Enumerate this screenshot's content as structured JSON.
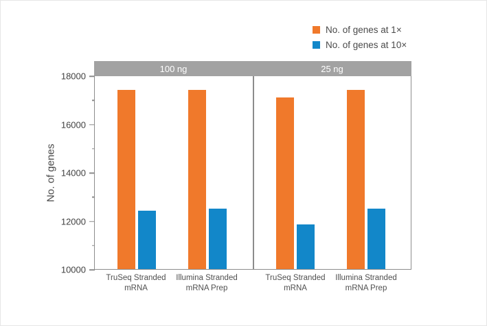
{
  "chart_data": {
    "type": "bar",
    "title": "",
    "ylabel": "No. of genes",
    "xlabel": "",
    "ylim": [
      10000,
      18000
    ],
    "y_major_ticks": [
      10000,
      12000,
      14000,
      16000,
      18000
    ],
    "y_minor_ticks": [
      11000,
      13000,
      15000,
      17000
    ],
    "grid": false,
    "legend_position": "top-right",
    "legend": [
      {
        "label": "No. of genes at 1×",
        "color": "#F0792B"
      },
      {
        "label": "No. of genes at 10×",
        "color": "#1287C9"
      }
    ],
    "panels": [
      {
        "label": "100 ng",
        "categories": [
          "TruSeq Stranded mRNA",
          "Illumina Stranded mRNA Prep"
        ],
        "series": [
          {
            "name": "No. of genes at 1×",
            "values": [
              17400,
              17400
            ]
          },
          {
            "name": "No. of genes at 10×",
            "values": [
              12400,
              12500
            ]
          }
        ]
      },
      {
        "label": "25 ng",
        "categories": [
          "TruSeq Stranded mRNA",
          "Illumina Stranded mRNA Prep"
        ],
        "series": [
          {
            "name": "No. of genes at 1×",
            "values": [
              17100,
              17400
            ]
          },
          {
            "name": "No. of genes at 10×",
            "values": [
              11850,
              12500
            ]
          }
        ]
      }
    ],
    "category_display": [
      [
        "TruSeq Stranded",
        "mRNA"
      ],
      [
        "Illumina Stranded",
        "mRNA Prep"
      ]
    ]
  },
  "styles": {
    "header_bg": "#A2A2A2",
    "header_text": "#FFFFFF",
    "axis_color": "#8C8C8C",
    "tick_label_color": "#414141",
    "category_label_color": "#4F4F4F",
    "legend_text_color": "#4A4A4A"
  }
}
